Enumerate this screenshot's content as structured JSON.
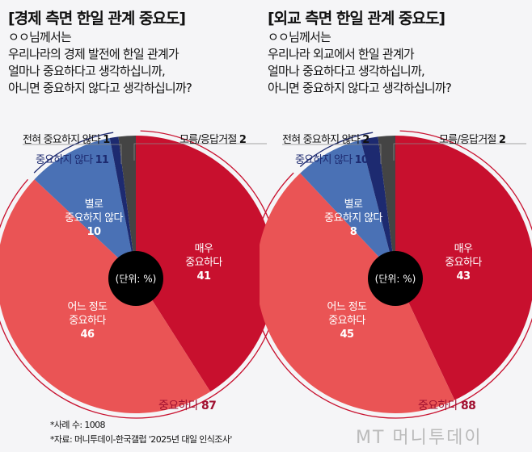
{
  "chart_data": [
    {
      "type": "pie",
      "title": "[경제 측면 한일 관계 중요도]",
      "question": "ㅇㅇ님께서는\n우리나라의 경제 발전에 한일 관계가\n얼마나 중요하다고 생각하십니까,\n아니면 중요하지 않다고 생각하십니까?",
      "unit": "(단위: %)",
      "slices": [
        {
          "label": "매우 중요하다",
          "value": 41,
          "color": "#c8102e"
        },
        {
          "label": "어느 정도 중요하다",
          "value": 46,
          "color": "#ea5455"
        },
        {
          "label": "별로 중요하지 않다",
          "value": 10,
          "color": "#4a71b5"
        },
        {
          "label": "전혀 중요하지 않다",
          "value": 1,
          "color": "#1d2a70"
        },
        {
          "label": "모름/응답거절",
          "value": 2,
          "color": "#444444"
        }
      ],
      "groups": {
        "important": {
          "label": "중요하다",
          "value": 87
        },
        "not_important": {
          "label": "중요하지 않다",
          "value": 11
        }
      }
    },
    {
      "type": "pie",
      "title": "[외교 측면 한일 관계 중요도]",
      "question": "ㅇㅇ님께서는\n우리나라 외교에서 한일 관계가\n얼마나 중요하다고 생각하십니까,\n아니면 중요하지 않다고 생각하십니까?",
      "unit": "(단위: %)",
      "slices": [
        {
          "label": "매우 중요하다",
          "value": 43,
          "color": "#c8102e"
        },
        {
          "label": "어느 정도 중요하다",
          "value": 45,
          "color": "#ea5455"
        },
        {
          "label": "별로 중요하지 않다",
          "value": 8,
          "color": "#4a71b5"
        },
        {
          "label": "전혀 중요하지 않다",
          "value": 2,
          "color": "#1d2a70"
        },
        {
          "label": "모름/응답거절",
          "value": 2,
          "color": "#444444"
        }
      ],
      "groups": {
        "important": {
          "label": "중요하다",
          "value": 88
        },
        "not_important": {
          "label": "중요하지 않다",
          "value": 10
        }
      }
    }
  ],
  "labels": {
    "very": [
      "매우",
      "중요하다"
    ],
    "some": [
      "어느 정도",
      "중요하다"
    ],
    "notvery": [
      "별로",
      "중요하지 않다"
    ]
  },
  "footer": {
    "cases": "*사례 수: 1008",
    "source": "*자료: 머니투데이-한국갤럽 '2025년 대일 인식조사'",
    "logo": "MT 머니투데이"
  }
}
